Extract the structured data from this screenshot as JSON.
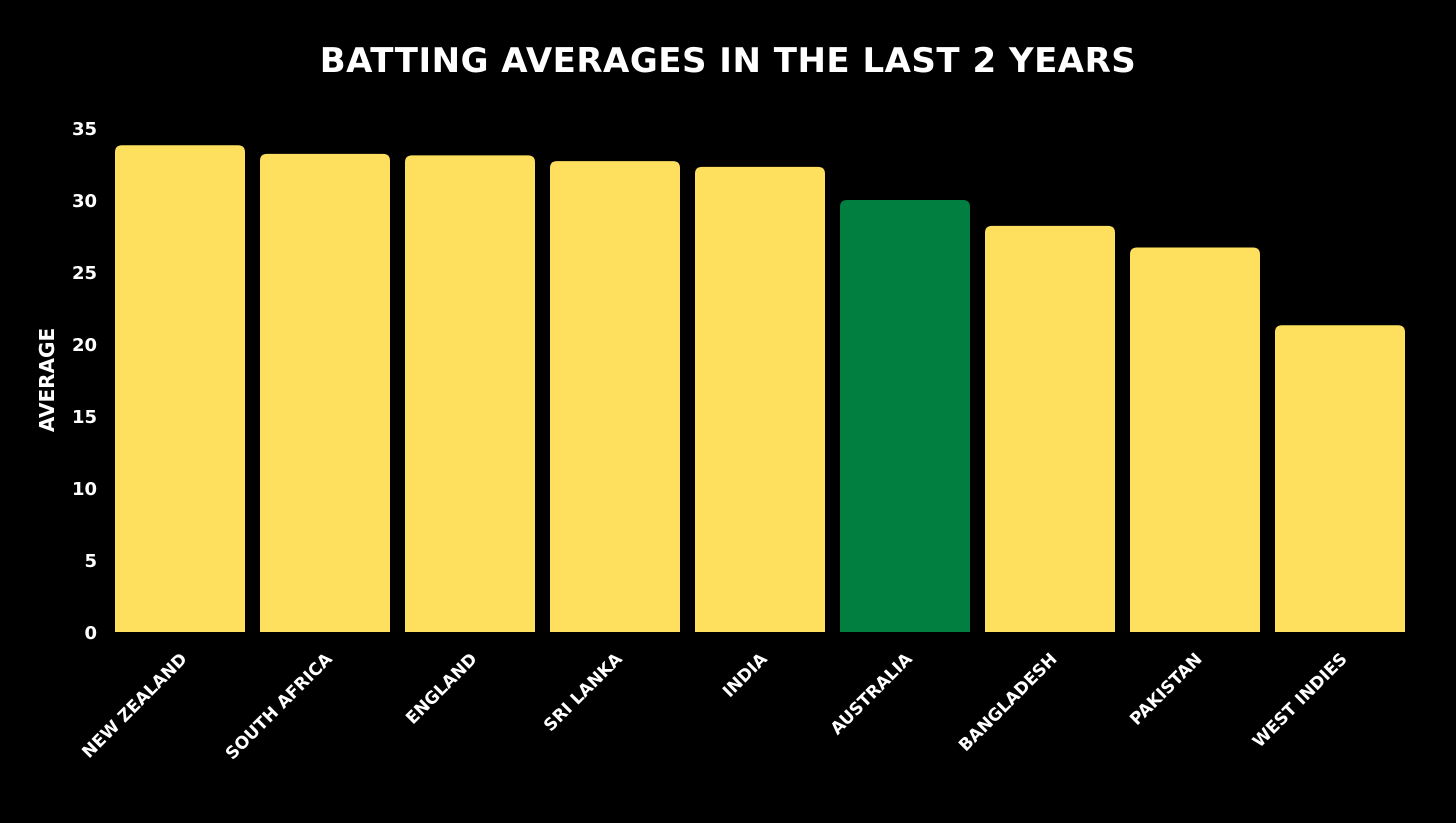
{
  "chart_data": {
    "type": "bar",
    "title": "BATTING AVERAGES IN THE LAST 2 YEARS",
    "xlabel": "",
    "ylabel": "AVERAGE",
    "ylim": [
      0,
      35
    ],
    "yticks": [
      0,
      5,
      10,
      15,
      20,
      25,
      30,
      35
    ],
    "grid": false,
    "legend": "none",
    "categories": [
      "NEW ZEALAND",
      "SOUTH AFRICA",
      "ENGLAND",
      "SRI LANKA",
      "INDIA",
      "AUSTRALIA",
      "BANGLADESH",
      "PAKISTAN",
      "WEST INDIES"
    ],
    "values": [
      33.8,
      33.2,
      33.1,
      32.7,
      32.3,
      30.0,
      28.2,
      26.7,
      21.3
    ],
    "highlight_category": "AUSTRALIA",
    "colors": {
      "background": "#000000",
      "bar": "#FFDF5E",
      "highlight": "#007F40",
      "text": "#FFFFFF"
    }
  }
}
